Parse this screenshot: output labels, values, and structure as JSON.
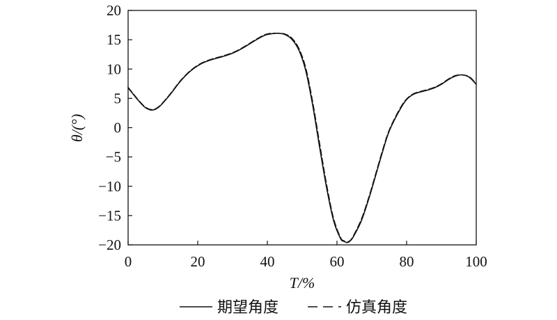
{
  "chart_data": {
    "type": "line",
    "xlabel": "T/%",
    "ylabel": "θ/(°)",
    "xlim": [
      0,
      100
    ],
    "ylim": [
      -20,
      20
    ],
    "xticks": [
      0,
      20,
      40,
      60,
      80,
      100
    ],
    "yticks": [
      -20,
      -15,
      -10,
      -5,
      0,
      5,
      10,
      15,
      20
    ],
    "grid": false,
    "legend_position": "bottom",
    "series": [
      {
        "name": "期望角度",
        "style": "solid",
        "x": [
          0,
          3,
          5,
          7,
          9,
          12,
          15,
          18,
          21,
          24,
          27,
          30,
          33,
          36,
          39,
          41,
          43,
          45,
          47,
          49,
          51,
          53,
          55,
          57,
          59,
          61,
          62,
          63,
          64,
          65,
          67,
          69,
          71,
          73,
          75,
          78,
          80,
          82,
          84,
          86,
          88,
          90,
          92,
          94,
          96,
          98,
          100
        ],
        "values": [
          6.8,
          4.6,
          3.4,
          3.0,
          3.6,
          5.6,
          7.9,
          9.7,
          10.9,
          11.6,
          12.1,
          12.7,
          13.6,
          14.7,
          15.7,
          16.0,
          16.1,
          15.9,
          15.1,
          13.3,
          9.8,
          3.9,
          -3.3,
          -10.2,
          -15.8,
          -18.9,
          -19.4,
          -19.6,
          -19.2,
          -18.3,
          -15.9,
          -12.4,
          -8.4,
          -4.3,
          -0.6,
          3.0,
          4.8,
          5.7,
          6.1,
          6.4,
          6.8,
          7.4,
          8.2,
          8.8,
          9.0,
          8.6,
          7.4
        ]
      },
      {
        "name": "仿真角度",
        "style": "dashed",
        "x": [
          0,
          3,
          5,
          7,
          9,
          12,
          15,
          18,
          21,
          24,
          27,
          30,
          33,
          36,
          39,
          41,
          43,
          45,
          47,
          49,
          51,
          53,
          55,
          57,
          59,
          61,
          62,
          63,
          64,
          65,
          67,
          69,
          71,
          73,
          75,
          78,
          80,
          82,
          84,
          86,
          88,
          90,
          92,
          94,
          96,
          98,
          100
        ],
        "values": [
          6.9,
          4.7,
          3.5,
          3.1,
          3.7,
          5.7,
          8.0,
          9.8,
          11.0,
          11.7,
          12.2,
          12.8,
          13.7,
          14.8,
          15.8,
          16.1,
          16.1,
          16.0,
          15.3,
          13.6,
          10.3,
          4.5,
          -2.6,
          -9.6,
          -15.4,
          -18.7,
          -19.3,
          -19.5,
          -19.1,
          -18.1,
          -15.6,
          -12.1,
          -8.1,
          -4.0,
          -0.4,
          3.2,
          4.9,
          5.8,
          6.2,
          6.5,
          6.9,
          7.5,
          8.3,
          8.9,
          9.0,
          8.7,
          7.5
        ]
      }
    ]
  }
}
